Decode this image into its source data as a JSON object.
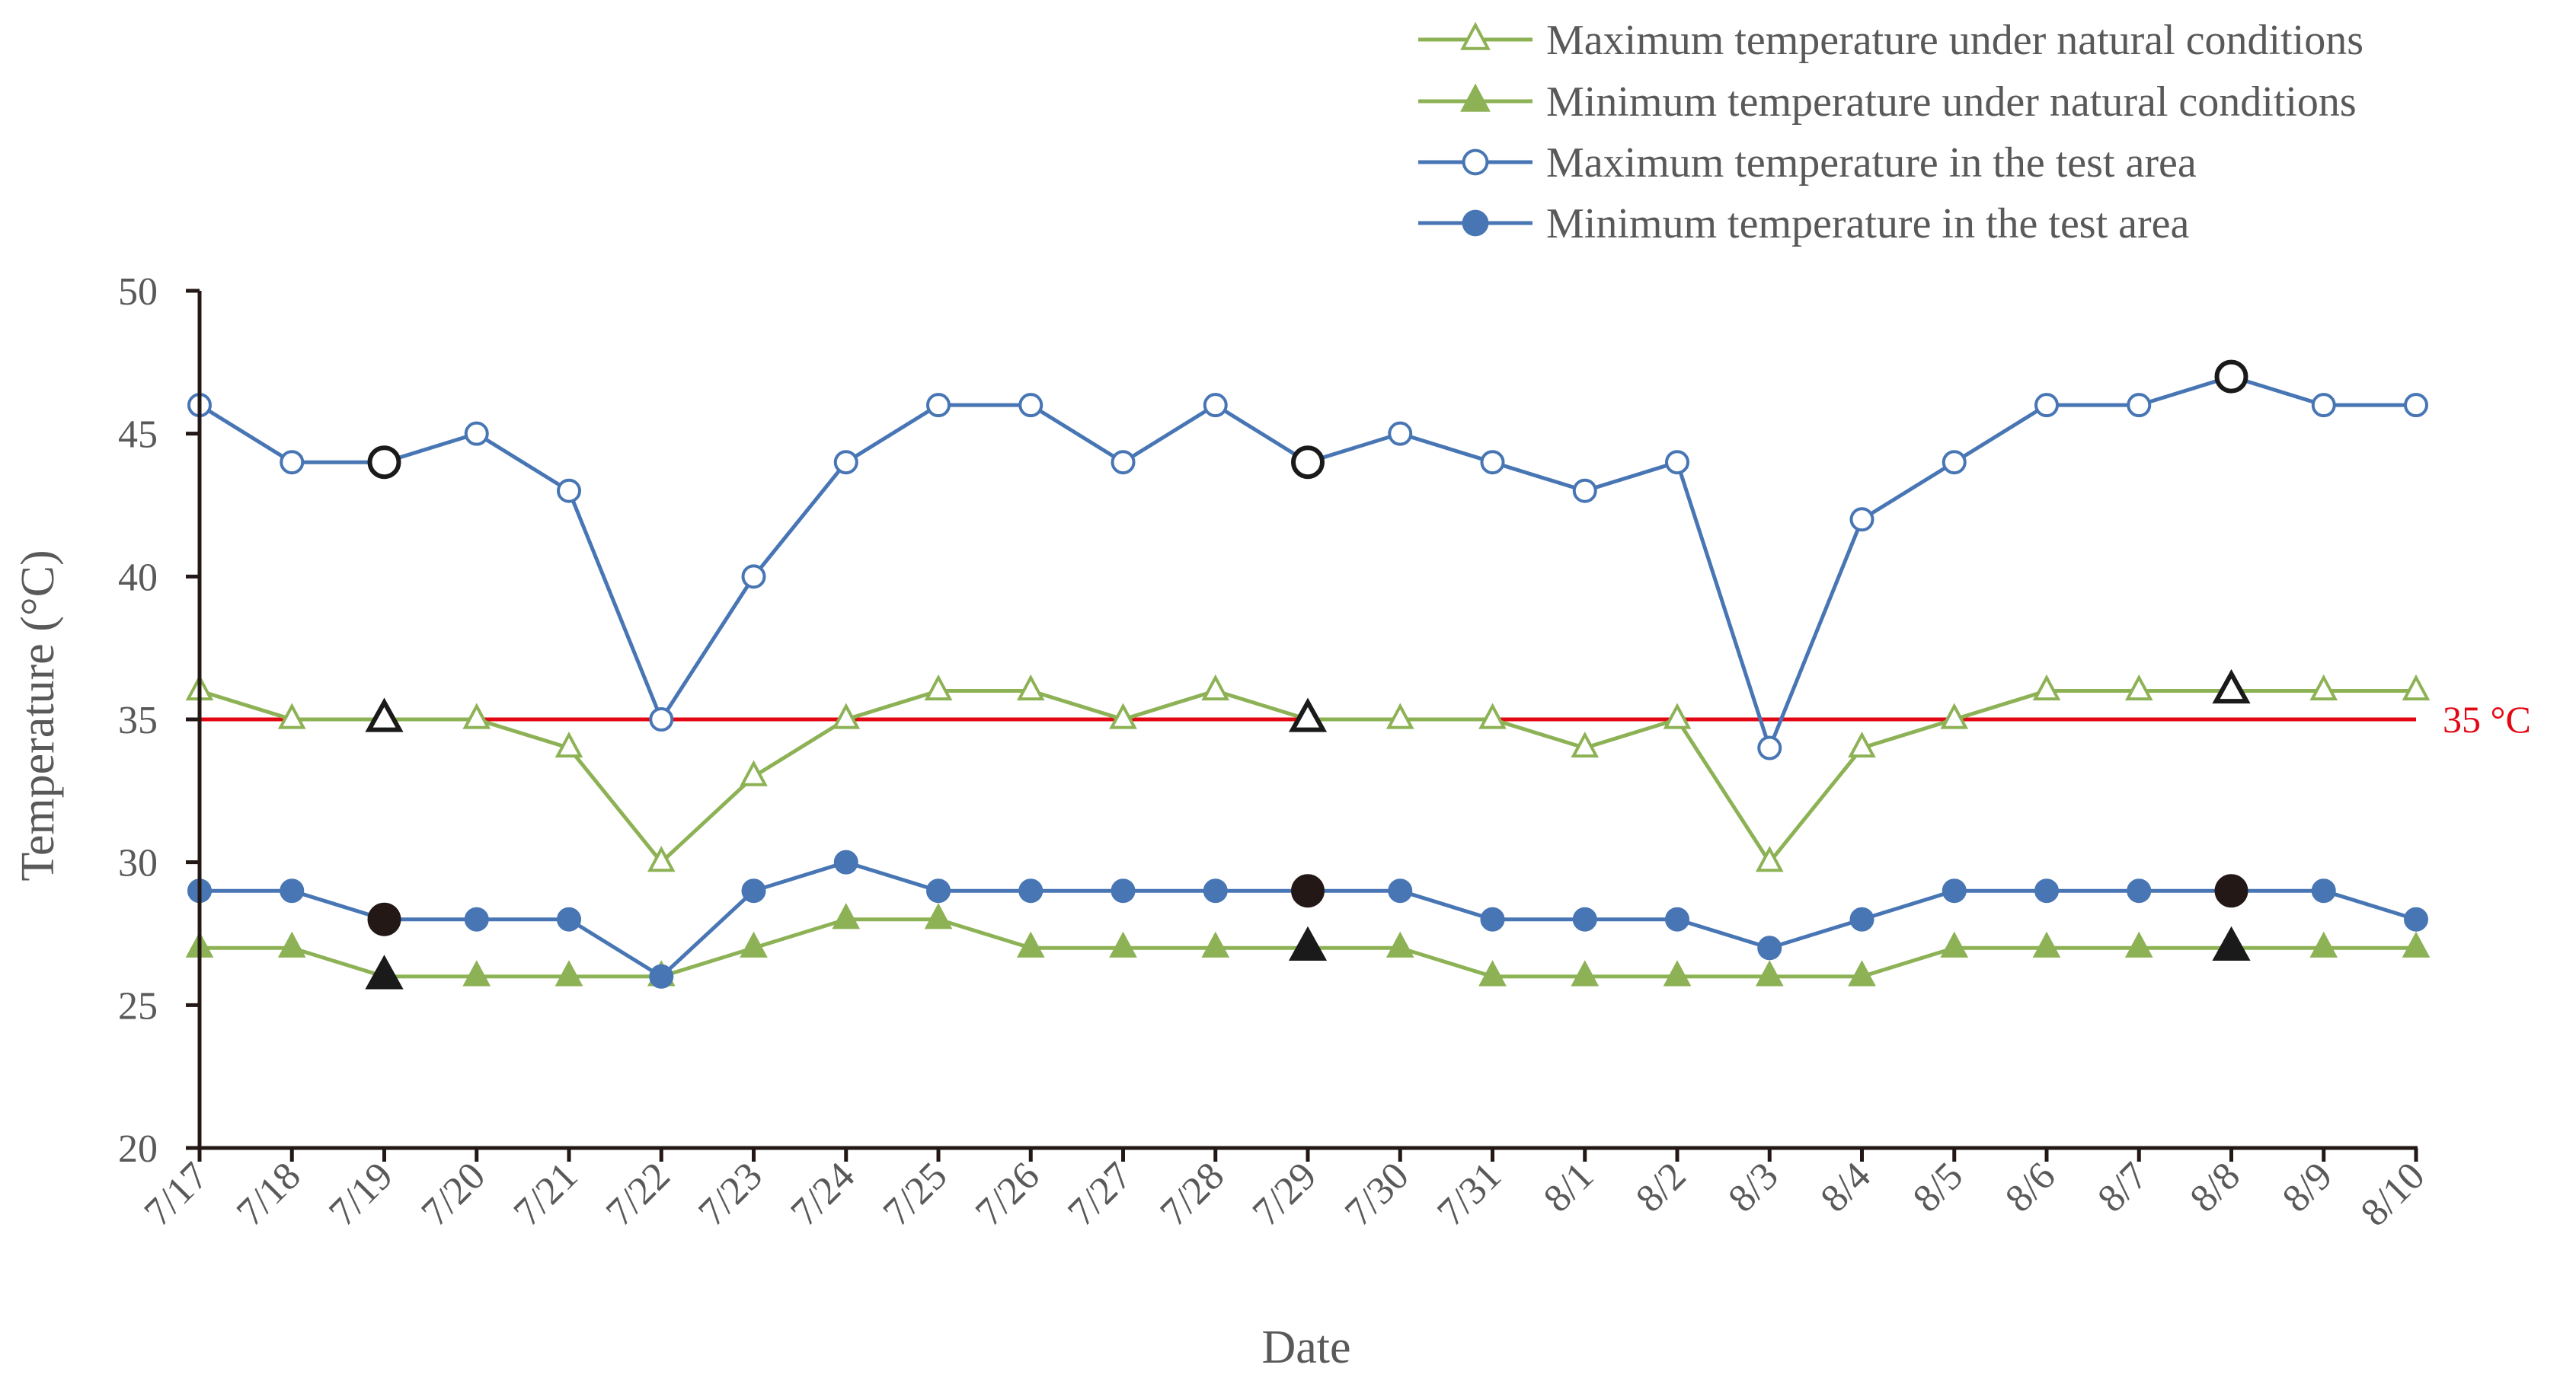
{
  "chart_data": {
    "type": "line",
    "xlabel": "Date",
    "ylabel": "Temperature (°C)",
    "ylim": [
      20,
      50
    ],
    "yticks": [
      "20",
      "25",
      "30",
      "35",
      "40",
      "45",
      "50"
    ],
    "categories": [
      "7/17",
      "7/18",
      "7/19",
      "7/20",
      "7/21",
      "7/22",
      "7/23",
      "7/24",
      "7/25",
      "7/26",
      "7/27",
      "7/28",
      "7/29",
      "7/30",
      "7/31",
      "8/1",
      "8/2",
      "8/3",
      "8/4",
      "8/5",
      "8/6",
      "8/7",
      "8/8",
      "8/9",
      "8/10"
    ],
    "highlighted_categories": [
      "7/19",
      "7/29",
      "8/8"
    ],
    "reference_line": {
      "value": 35,
      "label": "35 °C",
      "color": "#e30613"
    },
    "series": [
      {
        "name": "Maximum temperature under natural conditions",
        "color": "#8db255",
        "marker": "triangle-open",
        "values": [
          36,
          35,
          35,
          35,
          34,
          30,
          33,
          35,
          36,
          36,
          35,
          36,
          35,
          35,
          35,
          34,
          35,
          30,
          34,
          35,
          36,
          36,
          36,
          36,
          36
        ]
      },
      {
        "name": "Minimum temperature under natural conditions",
        "color": "#8db255",
        "marker": "triangle-filled",
        "values": [
          27,
          27,
          26,
          26,
          26,
          26,
          27,
          28,
          28,
          27,
          27,
          27,
          27,
          27,
          26,
          26,
          26,
          26,
          26,
          27,
          27,
          27,
          27,
          27,
          27
        ]
      },
      {
        "name": "Maximum temperature in the test area",
        "color": "#4876b4",
        "marker": "circle-open",
        "values": [
          46,
          44,
          44,
          45,
          43,
          35,
          40,
          44,
          46,
          46,
          44,
          46,
          44,
          45,
          44,
          43,
          44,
          34,
          42,
          44,
          46,
          46,
          47,
          46,
          46
        ]
      },
      {
        "name": "Minimum temperature in the test area",
        "color": "#4876b4",
        "marker": "circle-filled",
        "values": [
          29,
          29,
          28,
          28,
          28,
          26,
          29,
          30,
          29,
          29,
          29,
          29,
          29,
          29,
          28,
          28,
          28,
          27,
          28,
          29,
          29,
          29,
          29,
          29,
          28
        ]
      }
    ]
  }
}
